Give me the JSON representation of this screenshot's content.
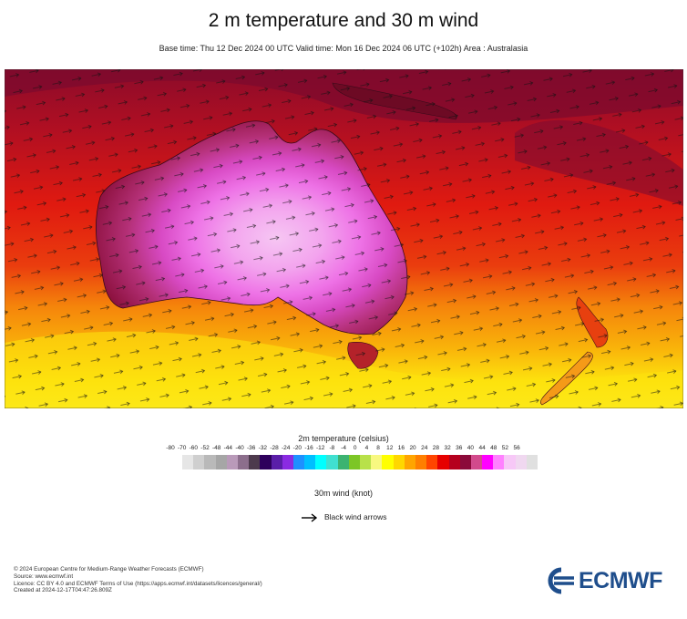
{
  "title": "2 m temperature and 30 m wind",
  "subtitle": "Base time: Thu 12 Dec 2024 00 UTC Valid time: Mon 16 Dec 2024 06 UTC (+102h) Area : Australasia",
  "map": {
    "region": "Australasia",
    "wind_arrows": "black",
    "ocean_gradient_colors": [
      "#8c0b2a",
      "#cc1216",
      "#e41a0e",
      "#ef5a0c",
      "#f7a10a",
      "#fde20e",
      "#fbf02a"
    ],
    "land_colors": {
      "hot_core": "#f6c6f3",
      "inner": "#ee72e6",
      "mid": "#e84fe0",
      "outer": "#c93a8c",
      "coast": "#a1164a",
      "nz": "#f59a18"
    }
  },
  "legend": {
    "title": "2m temperature (celsius)",
    "ticks": [
      "-80",
      "-70",
      "-60",
      "-52",
      "-48",
      "-44",
      "-40",
      "-36",
      "-32",
      "-28",
      "-24",
      "-20",
      "-16",
      "-12",
      "-8",
      "-4",
      "0",
      "4",
      "8",
      "12",
      "16",
      "20",
      "24",
      "28",
      "32",
      "36",
      "40",
      "44",
      "48",
      "52",
      "56"
    ],
    "colors": [
      "#e6e6e6",
      "#cfcfcf",
      "#b9b9b9",
      "#a6a6a6",
      "#b99ab9",
      "#8c6e8c",
      "#4d3a4d",
      "#2e005c",
      "#5a1ea8",
      "#8a2be2",
      "#1e90ff",
      "#00bfff",
      "#00ffff",
      "#40e0d0",
      "#3cb371",
      "#7cc626",
      "#b8e14a",
      "#f8f880",
      "#ffff00",
      "#ffd700",
      "#ffa500",
      "#ff7f00",
      "#ff4500",
      "#e60000",
      "#b5001e",
      "#8b0a3a",
      "#d24a8c",
      "#ff00ff",
      "#ff80ff",
      "#f7c8f7",
      "#f0d8f0",
      "#e0e0e0"
    ]
  },
  "wind_legend": {
    "title": "30m wind (knot)",
    "arrow_label": "Black wind arrows"
  },
  "footer": {
    "lines": [
      "© 2024 European Centre for Medium-Range Weather Forecasts (ECMWF)",
      "Source: www.ecmwf.int",
      "Licence: CC BY 4.0 and ECMWF Terms of Use (https://apps.ecmwf.int/datasets/licences/general/)",
      "Created at 2024-12-17T04:47:26.809Z"
    ]
  },
  "logo": {
    "text": "ECMWF",
    "color": "#1f4e8c"
  }
}
